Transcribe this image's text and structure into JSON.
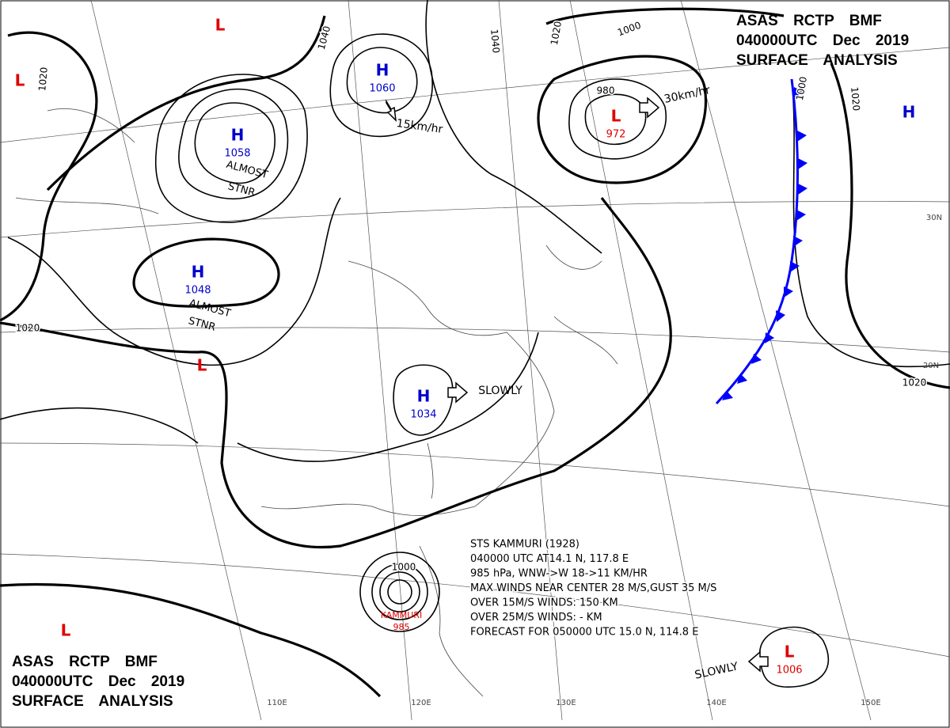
{
  "header_top": [
    "ASAS RCTP BMF",
    "040000UTC Dec 2019",
    "SURFACE ANALYSIS"
  ],
  "header_bottom": [
    "ASAS RCTP BMF",
    "040000UTC Dec 2019",
    "SURFACE ANALYSIS"
  ],
  "pressure_centers": [
    {
      "label": "H",
      "value": "1060",
      "color": "#0000cc"
    },
    {
      "label": "H",
      "value": "1058",
      "color": "#0000cc"
    },
    {
      "label": "H",
      "value": "1048",
      "color": "#0000cc"
    },
    {
      "label": "H",
      "value": "1034",
      "color": "#0000cc"
    },
    {
      "label": "L",
      "value": "972",
      "color": "#e00000"
    },
    {
      "label": "L",
      "value": "1006",
      "color": "#e00000"
    },
    {
      "label": "L",
      "color": "#e00000"
    },
    {
      "label": "L",
      "color": "#e00000"
    },
    {
      "label": "L",
      "color": "#e00000"
    },
    {
      "label": "L",
      "color": "#e00000"
    },
    {
      "label": "H",
      "color": "#0000cc"
    }
  ],
  "typhoon_label": [
    "KAMMURI",
    "985"
  ],
  "isobar_labels": [
    "1040",
    "1040",
    "1020",
    "1000",
    "1020",
    "1020",
    "980",
    "1000",
    "1020",
    "1020",
    "1000"
  ],
  "motion_labels": [
    "15km/hr",
    "30km/hr",
    "SLOWLY",
    "SLOWLY"
  ],
  "annotations": [
    [
      "ALMOST",
      "STNR"
    ],
    [
      "ALMOST",
      "STNR"
    ]
  ],
  "typhoon_info": [
    "STS KAMMURI (1928)",
    "040000 UTC AT14.1 N, 117.8 E",
    "985 hPa, WNW->W 18->11 KM/HR",
    "MAX WINDS NEAR CENTER 28 M/S,GUST 35 M/S",
    "OVER 15M/S WINDS: 150 KM",
    "OVER 25M/S WINDS: - KM",
    "FORECAST FOR 050000 UTC 15.0 N, 114.8 E"
  ],
  "graticule_labels": [
    "110E",
    "120E",
    "130E",
    "140E",
    "150E",
    "30N",
    "20N"
  ]
}
